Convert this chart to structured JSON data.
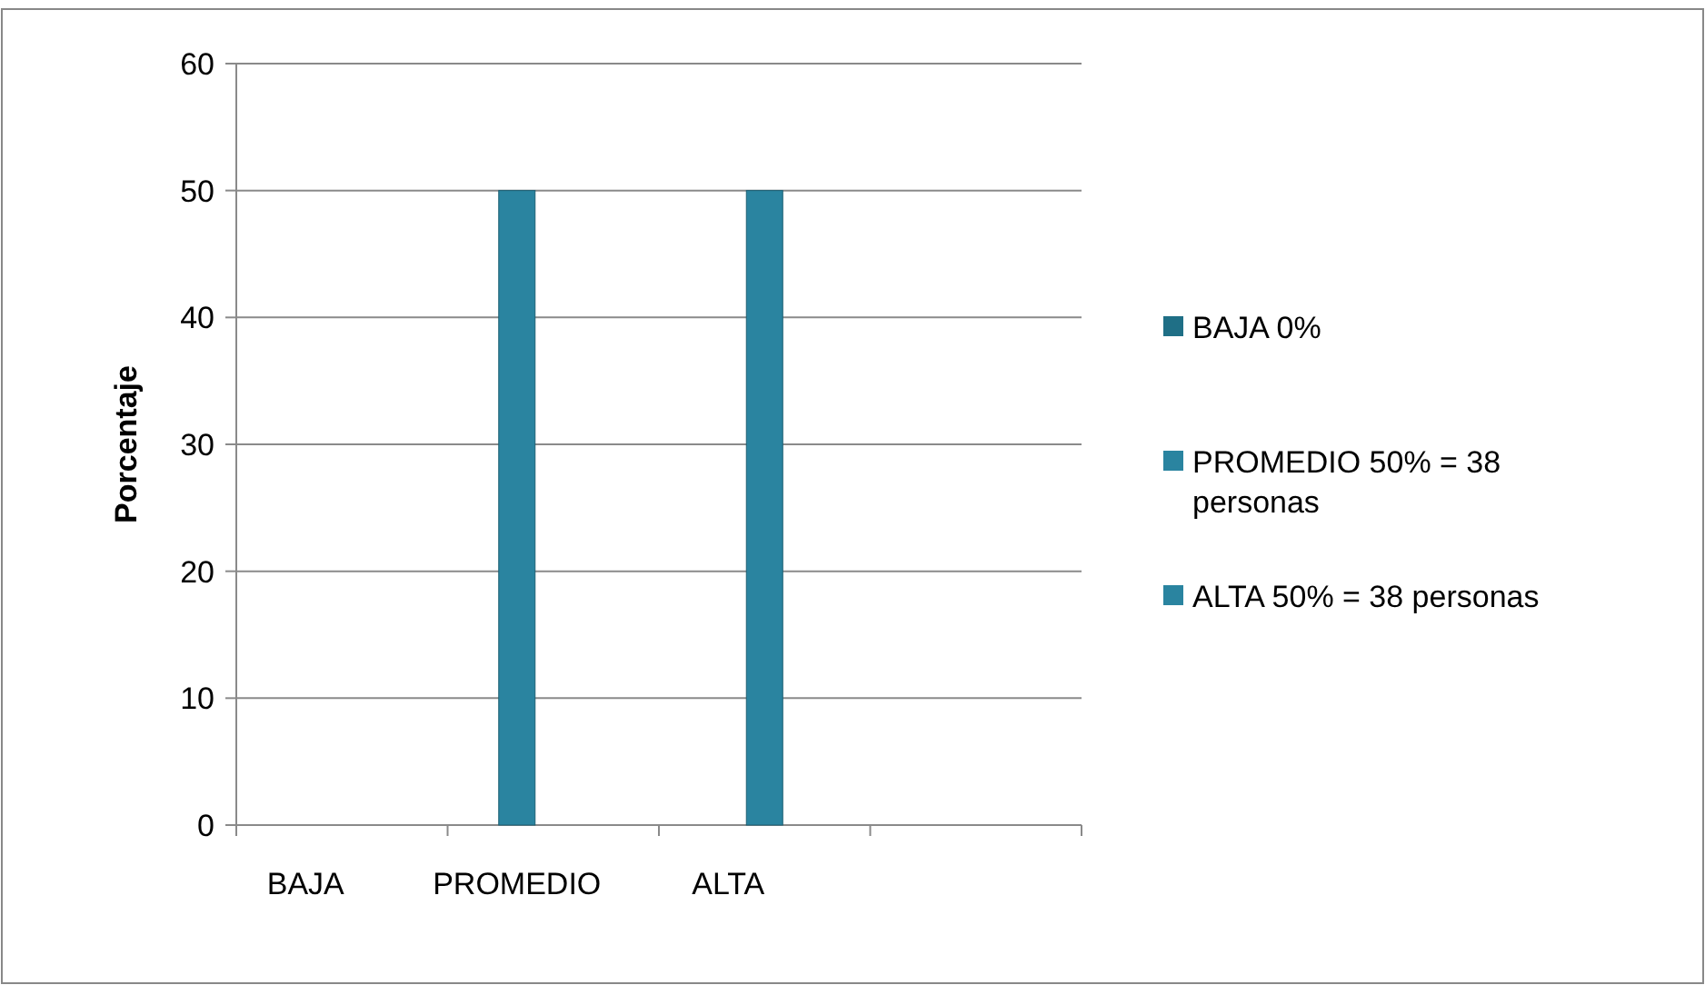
{
  "chart_data": {
    "type": "bar",
    "ylabel": "Porcentaje",
    "categories": [
      "BAJA",
      "PROMEDIO",
      "ALTA",
      null
    ],
    "series": [
      {
        "name": "BAJA 0%",
        "color": "#1f6f86",
        "values": [
          0,
          null,
          null,
          null
        ]
      },
      {
        "name": "PROMEDIO 50% = 38 personas",
        "color": "#2a84a0",
        "values": [
          null,
          50,
          null,
          null
        ]
      },
      {
        "name": "ALTA 50% = 38 personas",
        "color": "#2a84a0",
        "values": [
          null,
          null,
          50,
          null
        ]
      }
    ],
    "ylim": [
      0,
      60
    ],
    "yticks": [
      0,
      10,
      20,
      30,
      40,
      50,
      60
    ],
    "grid": "y",
    "legend": "right"
  }
}
